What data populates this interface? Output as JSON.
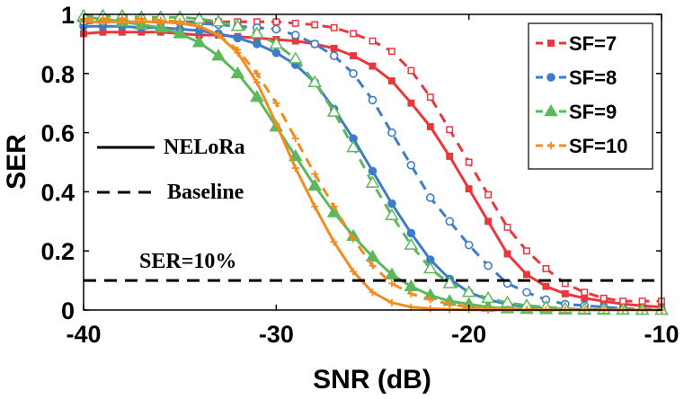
{
  "chart_data": {
    "type": "line",
    "title": "",
    "xlabel": "SNR (dB)",
    "ylabel": "SER",
    "xlim": [
      -40,
      -10
    ],
    "ylim": [
      0,
      1
    ],
    "xticks": [
      "-40",
      "-30",
      "-20",
      "-10"
    ],
    "yticks": [
      "0",
      "0.2",
      "0.4",
      "0.6",
      "0.8",
      "1"
    ],
    "grid": false,
    "legend_position": "top-right",
    "legend": [
      "SF=7",
      "SF=8",
      "SF=9",
      "SF=10"
    ],
    "style_legend": {
      "solid": "NELoRa",
      "dashed": "Baseline"
    },
    "x": [
      -40,
      -39,
      -38,
      -37,
      -36,
      -35,
      -34,
      -33,
      -32,
      -31,
      -30,
      -29,
      -28,
      -27,
      -26,
      -25,
      -24,
      -23,
      -22,
      -21,
      -20,
      -19,
      -18,
      -17,
      -16,
      -15,
      -14,
      -13,
      -12,
      -11,
      -10
    ],
    "series": [
      {
        "name": "SF=7",
        "method": "NELoRa",
        "color": "#e8383d",
        "marker": "square",
        "dashed": false,
        "values": [
          0.935,
          0.94,
          0.94,
          0.94,
          0.94,
          0.935,
          0.93,
          0.93,
          0.925,
          0.92,
          0.915,
          0.91,
          0.9,
          0.885,
          0.86,
          0.825,
          0.775,
          0.7,
          0.62,
          0.52,
          0.41,
          0.3,
          0.19,
          0.12,
          0.08,
          0.055,
          0.04,
          0.03,
          0.02,
          0.015,
          0.01
        ]
      },
      {
        "name": "SF=7",
        "method": "Baseline",
        "color": "#e8383d",
        "marker": "square",
        "dashed": true,
        "values": [
          0.97,
          0.975,
          0.975,
          0.975,
          0.975,
          0.975,
          0.975,
          0.975,
          0.975,
          0.975,
          0.975,
          0.97,
          0.965,
          0.955,
          0.935,
          0.91,
          0.875,
          0.81,
          0.72,
          0.61,
          0.5,
          0.39,
          0.28,
          0.2,
          0.14,
          0.09,
          0.06,
          0.04,
          0.03,
          0.03,
          0.03
        ]
      },
      {
        "name": "SF=8",
        "method": "NELoRa",
        "color": "#3d7cc9",
        "marker": "circle",
        "dashed": false,
        "values": [
          0.96,
          0.96,
          0.96,
          0.955,
          0.955,
          0.95,
          0.945,
          0.935,
          0.92,
          0.9,
          0.87,
          0.83,
          0.77,
          0.68,
          0.58,
          0.47,
          0.36,
          0.26,
          0.17,
          0.105,
          0.06,
          0.035,
          0.02,
          0.01,
          0.005,
          0.003,
          0.002,
          0.001,
          0.0,
          0.0,
          0.0
        ]
      },
      {
        "name": "SF=8",
        "method": "Baseline",
        "color": "#3d7cc9",
        "marker": "circle",
        "dashed": true,
        "values": [
          0.975,
          0.975,
          0.975,
          0.975,
          0.975,
          0.975,
          0.97,
          0.965,
          0.96,
          0.955,
          0.95,
          0.93,
          0.9,
          0.86,
          0.8,
          0.71,
          0.6,
          0.49,
          0.38,
          0.3,
          0.22,
          0.15,
          0.09,
          0.06,
          0.035,
          0.02,
          0.015,
          0.01,
          0.005,
          0.003,
          0.002
        ]
      },
      {
        "name": "SF=9",
        "method": "NELoRa",
        "color": "#5cb85c",
        "marker": "triangle",
        "dashed": false,
        "values": [
          0.99,
          0.985,
          0.975,
          0.965,
          0.955,
          0.935,
          0.905,
          0.86,
          0.8,
          0.72,
          0.62,
          0.52,
          0.42,
          0.33,
          0.25,
          0.18,
          0.12,
          0.08,
          0.05,
          0.03,
          0.02,
          0.01,
          0.005,
          0.003,
          0.002,
          0.001,
          0.0,
          0.0,
          0.0,
          0.0,
          0.0
        ]
      },
      {
        "name": "SF=9",
        "method": "Baseline",
        "color": "#5cb85c",
        "marker": "triangle",
        "dashed": true,
        "values": [
          0.995,
          0.995,
          0.995,
          0.99,
          0.99,
          0.99,
          0.985,
          0.975,
          0.96,
          0.935,
          0.9,
          0.85,
          0.77,
          0.67,
          0.55,
          0.43,
          0.32,
          0.22,
          0.14,
          0.09,
          0.06,
          0.04,
          0.025,
          0.015,
          0.01,
          0.005,
          0.003,
          0.002,
          0.001,
          0.0,
          0.0
        ]
      },
      {
        "name": "SF=10",
        "method": "NELoRa",
        "color": "#f28c1e",
        "marker": "plus",
        "dashed": false,
        "values": [
          0.975,
          0.975,
          0.975,
          0.975,
          0.975,
          0.97,
          0.96,
          0.93,
          0.87,
          0.77,
          0.63,
          0.48,
          0.35,
          0.23,
          0.13,
          0.06,
          0.025,
          0.01,
          0.005,
          0.002,
          0.001,
          0.0,
          0.0,
          0.0,
          0.0,
          0.0,
          0.0,
          0.0,
          0.0,
          0.0,
          0.0
        ]
      },
      {
        "name": "SF=10",
        "method": "Baseline",
        "color": "#f28c1e",
        "marker": "plus",
        "dashed": true,
        "values": [
          0.985,
          0.985,
          0.985,
          0.985,
          0.98,
          0.975,
          0.96,
          0.93,
          0.88,
          0.8,
          0.7,
          0.58,
          0.46,
          0.35,
          0.24,
          0.15,
          0.09,
          0.055,
          0.035,
          0.02,
          0.01,
          0.005,
          0.003,
          0.002,
          0.001,
          0.0,
          0.0,
          0.0,
          0.0,
          0.0,
          0.0
        ]
      }
    ],
    "reference_line": {
      "label": "SER=10%",
      "y": 0.1,
      "color": "#000000"
    }
  }
}
